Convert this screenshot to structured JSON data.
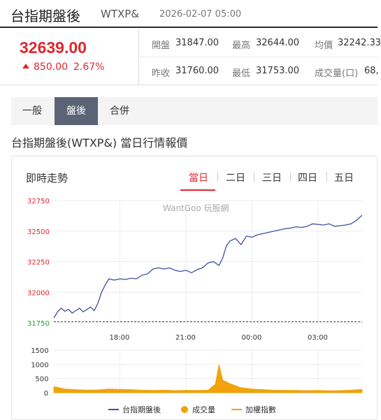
{
  "header": {
    "name": "台指期盤後",
    "code": "WTXP&",
    "time": "2026-02-07 05:00"
  },
  "quote": {
    "price": "32639.00",
    "change": "850.00",
    "change_pct": "2.67%",
    "row1": [
      {
        "label": "開盤",
        "value": "31847.00"
      },
      {
        "label": "最高",
        "value": "32644.00"
      },
      {
        "label": "均價",
        "value": "32242.33"
      }
    ],
    "row2": [
      {
        "label": "昨收",
        "value": "31760.00"
      },
      {
        "label": "最低",
        "value": "31753.00"
      },
      {
        "label": "成交量(口)",
        "value": "68,"
      }
    ]
  },
  "tabs": [
    "一般",
    "盤後",
    "合併"
  ],
  "section_title": "台指期盤後(WTXP&) 當日行情報價",
  "card": {
    "title": "即時走勢",
    "range_tabs": [
      "當日",
      "二日",
      "三日",
      "四日",
      "五日"
    ],
    "watermark": "WantGoo 玩股網"
  },
  "colors": {
    "up": "#e0262e",
    "line": "#3f4fa3",
    "volume": "#f0a30a"
  },
  "chart_data": {
    "type": "line",
    "price_y_ticks": [
      31750,
      32000,
      32250,
      32500,
      32750
    ],
    "price_ylim": [
      31750,
      32750
    ],
    "prev_close": 31760,
    "x_ticks": [
      "18:00",
      "21:00",
      "00:00",
      "03:00"
    ],
    "volume_y_ticks": [
      0,
      500,
      1000,
      1500
    ],
    "volume_ylim": [
      0,
      1500
    ],
    "legend": [
      "台指期盤後",
      "成交量",
      "加權指數"
    ],
    "series": [
      {
        "name": "台指期盤後",
        "x": [
          "15:00",
          "15:10",
          "15:20",
          "15:30",
          "15:40",
          "15:50",
          "16:00",
          "16:10",
          "16:20",
          "16:30",
          "16:40",
          "16:50",
          "17:00",
          "17:10",
          "17:20",
          "17:30",
          "17:45",
          "18:00",
          "18:15",
          "18:30",
          "18:45",
          "19:00",
          "19:15",
          "19:30",
          "19:45",
          "20:00",
          "20:15",
          "20:30",
          "20:45",
          "21:00",
          "21:15",
          "21:30",
          "21:45",
          "22:00",
          "22:15",
          "22:30",
          "22:40",
          "22:50",
          "23:00",
          "23:15",
          "23:30",
          "23:45",
          "00:00",
          "00:15",
          "00:30",
          "00:45",
          "01:00",
          "01:15",
          "01:30",
          "01:45",
          "02:00",
          "02:15",
          "02:30",
          "02:45",
          "03:00",
          "03:15",
          "03:30",
          "03:45",
          "04:00",
          "04:15",
          "04:30",
          "04:45",
          "05:00"
        ],
        "values": [
          31790,
          31840,
          31870,
          31845,
          31860,
          31830,
          31850,
          31870,
          31840,
          31860,
          31880,
          31850,
          31910,
          32000,
          32060,
          32110,
          32100,
          32110,
          32105,
          32115,
          32110,
          32140,
          32150,
          32190,
          32200,
          32190,
          32200,
          32180,
          32170,
          32180,
          32160,
          32185,
          32200,
          32240,
          32250,
          32220,
          32280,
          32380,
          32420,
          32440,
          32390,
          32460,
          32450,
          32470,
          32480,
          32490,
          32500,
          32510,
          32520,
          32525,
          32535,
          32530,
          32540,
          32560,
          32555,
          32550,
          32560,
          32540,
          32545,
          32550,
          32560,
          32590,
          32630
        ]
      },
      {
        "name": "成交量",
        "x": [
          "15:00",
          "15:30",
          "16:00",
          "16:30",
          "17:00",
          "17:30",
          "18:00",
          "18:30",
          "19:00",
          "19:30",
          "20:00",
          "20:30",
          "21:00",
          "21:30",
          "22:00",
          "22:20",
          "22:30",
          "22:40",
          "23:00",
          "23:30",
          "00:00",
          "00:30",
          "01:00",
          "01:30",
          "02:00",
          "02:30",
          "03:00",
          "03:30",
          "04:00",
          "04:30",
          "05:00"
        ],
        "values": [
          220,
          130,
          110,
          95,
          100,
          130,
          120,
          110,
          90,
          80,
          90,
          75,
          85,
          80,
          90,
          300,
          1000,
          450,
          320,
          180,
          130,
          110,
          90,
          85,
          80,
          75,
          80,
          70,
          75,
          90,
          120
        ]
      }
    ]
  }
}
